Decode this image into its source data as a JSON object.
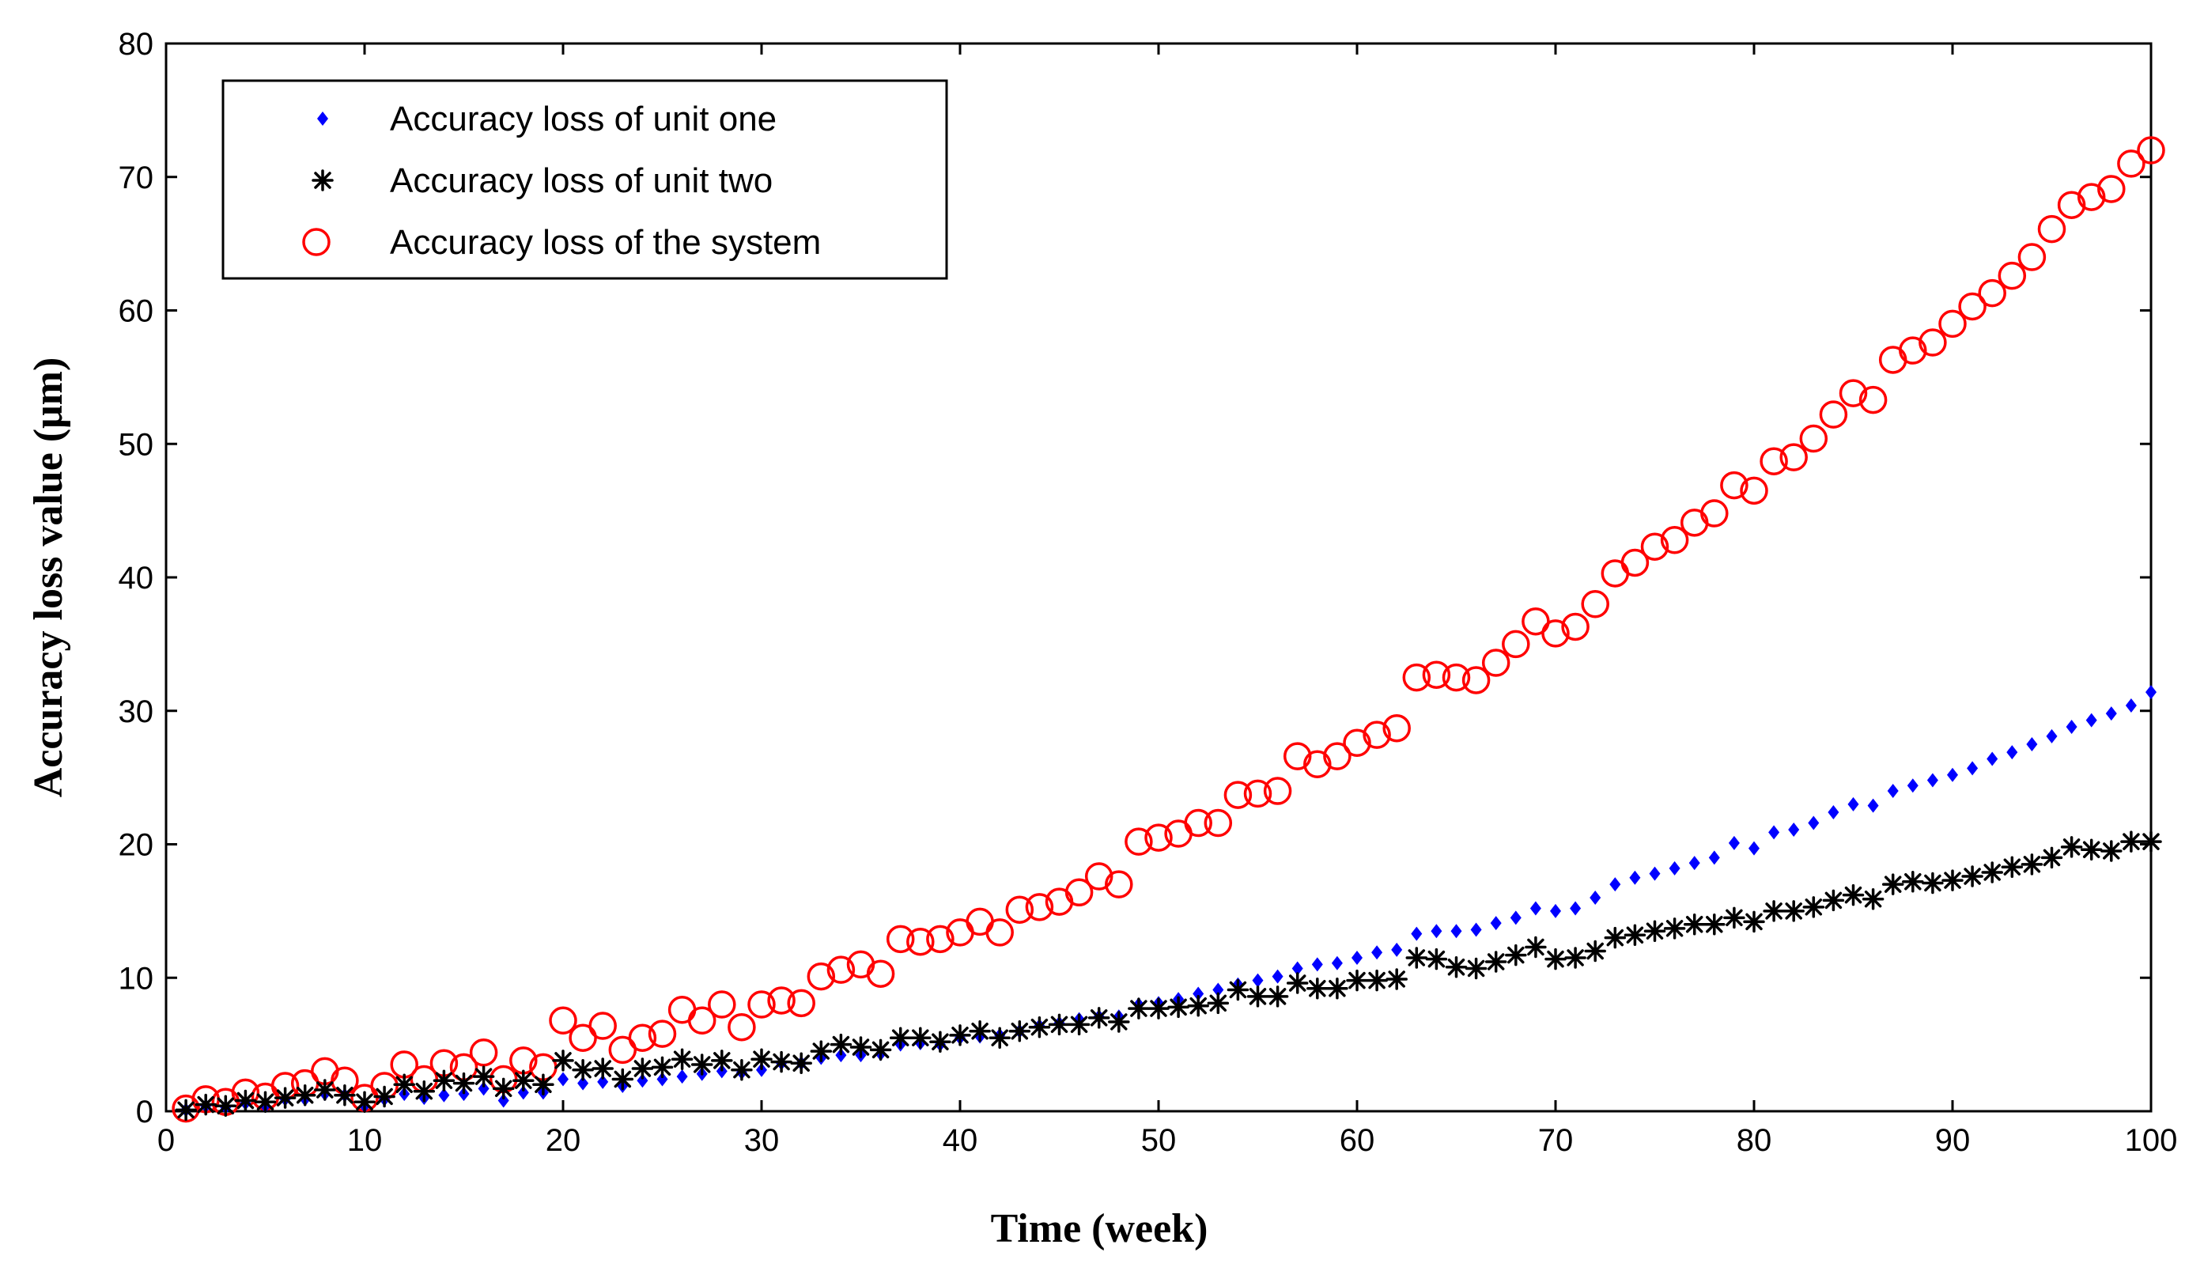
{
  "chart_data": {
    "type": "scatter",
    "title": "",
    "xlabel": "Time (week)",
    "ylabel": "Accuracy loss value (μm)",
    "xlim": [
      0,
      100
    ],
    "ylim": [
      0,
      80
    ],
    "xticks": [
      0,
      10,
      20,
      30,
      40,
      50,
      60,
      70,
      80,
      90,
      100
    ],
    "yticks": [
      0,
      10,
      20,
      30,
      40,
      50,
      60,
      70,
      80
    ],
    "grid": false,
    "legend_position": "top-left",
    "series": [
      {
        "name": "Accuracy loss of unit one",
        "marker": "diamond",
        "color": "#0000ff",
        "x": [
          1,
          2,
          3,
          4,
          5,
          6,
          7,
          8,
          9,
          10,
          11,
          12,
          13,
          14,
          15,
          16,
          17,
          18,
          19,
          20,
          21,
          22,
          23,
          24,
          25,
          26,
          27,
          28,
          29,
          30,
          31,
          32,
          33,
          34,
          35,
          36,
          37,
          38,
          39,
          40,
          41,
          42,
          43,
          44,
          45,
          46,
          47,
          48,
          49,
          50,
          51,
          52,
          53,
          54,
          55,
          56,
          57,
          58,
          59,
          60,
          61,
          62,
          63,
          64,
          65,
          66,
          67,
          68,
          69,
          70,
          71,
          72,
          73,
          74,
          75,
          76,
          77,
          78,
          79,
          80,
          81,
          82,
          83,
          84,
          85,
          86,
          87,
          88,
          89,
          90,
          91,
          92,
          93,
          94,
          95,
          96,
          97,
          98,
          99,
          100
        ],
        "y": [
          0.1,
          0.4,
          0.3,
          0.6,
          0.4,
          0.9,
          0.9,
          1.3,
          1.2,
          0.4,
          0.9,
          1.3,
          1.0,
          1.2,
          1.3,
          1.7,
          0.8,
          1.4,
          1.4,
          2.4,
          2.1,
          2.2,
          1.9,
          2.3,
          2.4,
          2.6,
          2.8,
          3.0,
          2.9,
          3.1,
          3.6,
          3.6,
          4.0,
          4.2,
          4.2,
          4.3,
          5.0,
          5.1,
          5.0,
          5.5,
          5.6,
          5.7,
          6.0,
          6.4,
          6.6,
          6.9,
          7.1,
          7.1,
          8.0,
          8.1,
          8.4,
          8.8,
          9.1,
          9.5,
          9.8,
          10.1,
          10.7,
          11.0,
          11.1,
          11.5,
          11.9,
          12.1,
          13.3,
          13.5,
          13.5,
          13.6,
          14.1,
          14.5,
          15.2,
          15.0,
          15.2,
          16.0,
          17.0,
          17.5,
          17.8,
          18.2,
          18.6,
          19.0,
          20.1,
          19.7,
          20.9,
          21.1,
          21.6,
          22.4,
          23.0,
          22.9,
          24.0,
          24.4,
          24.8,
          25.2,
          25.7,
          26.4,
          26.9,
          27.5,
          28.1,
          28.8,
          29.3,
          29.8,
          30.4,
          31.4
        ]
      },
      {
        "name": "Accuracy loss of unit two",
        "marker": "asterisk",
        "color": "#000000",
        "x": [
          1,
          2,
          3,
          4,
          5,
          6,
          7,
          8,
          9,
          10,
          11,
          12,
          13,
          14,
          15,
          16,
          17,
          18,
          19,
          20,
          21,
          22,
          23,
          24,
          25,
          26,
          27,
          28,
          29,
          30,
          31,
          32,
          33,
          34,
          35,
          36,
          37,
          38,
          39,
          40,
          41,
          42,
          43,
          44,
          45,
          46,
          47,
          48,
          49,
          50,
          51,
          52,
          53,
          54,
          55,
          56,
          57,
          58,
          59,
          60,
          61,
          62,
          63,
          64,
          65,
          66,
          67,
          68,
          69,
          70,
          71,
          72,
          73,
          74,
          75,
          76,
          77,
          78,
          79,
          80,
          81,
          82,
          83,
          84,
          85,
          86,
          87,
          88,
          89,
          90,
          91,
          92,
          93,
          94,
          95,
          96,
          97,
          98,
          99,
          100
        ],
        "y": [
          0.1,
          0.5,
          0.4,
          0.8,
          0.7,
          1.0,
          1.2,
          1.6,
          1.2,
          0.7,
          1.1,
          2.0,
          1.5,
          2.3,
          2.1,
          2.6,
          1.7,
          2.3,
          2.0,
          3.8,
          3.1,
          3.2,
          2.4,
          3.2,
          3.3,
          3.9,
          3.5,
          3.8,
          3.1,
          3.9,
          3.7,
          3.6,
          4.5,
          5.0,
          4.8,
          4.6,
          5.5,
          5.5,
          5.2,
          5.7,
          6.0,
          5.5,
          6.0,
          6.3,
          6.5,
          6.5,
          7.0,
          6.7,
          7.7,
          7.7,
          7.8,
          7.9,
          8.1,
          9.1,
          8.6,
          8.6,
          9.6,
          9.2,
          9.2,
          9.8,
          9.8,
          9.9,
          11.5,
          11.4,
          10.8,
          10.7,
          11.2,
          11.7,
          12.3,
          11.4,
          11.5,
          12.0,
          13.0,
          13.2,
          13.5,
          13.7,
          14.0,
          14.0,
          14.5,
          14.2,
          15.0,
          15.0,
          15.3,
          15.8,
          16.2,
          15.9,
          17.0,
          17.2,
          17.1,
          17.3,
          17.6,
          17.9,
          18.3,
          18.5,
          19.0,
          19.8,
          19.6,
          19.5,
          20.2,
          20.2
        ]
      },
      {
        "name": "Accuracy loss of the system",
        "marker": "circle",
        "color": "#ff0000",
        "x": [
          1,
          2,
          3,
          4,
          5,
          6,
          7,
          8,
          9,
          10,
          11,
          12,
          13,
          14,
          15,
          16,
          17,
          18,
          19,
          20,
          21,
          22,
          23,
          24,
          25,
          26,
          27,
          28,
          29,
          30,
          31,
          32,
          33,
          34,
          35,
          36,
          37,
          38,
          39,
          40,
          41,
          42,
          43,
          44,
          45,
          46,
          47,
          48,
          49,
          50,
          51,
          52,
          53,
          54,
          55,
          56,
          57,
          58,
          59,
          60,
          61,
          62,
          63,
          64,
          65,
          66,
          67,
          68,
          69,
          70,
          71,
          72,
          73,
          74,
          75,
          76,
          77,
          78,
          79,
          80,
          81,
          82,
          83,
          84,
          85,
          86,
          87,
          88,
          89,
          90,
          91,
          92,
          93,
          94,
          95,
          96,
          97,
          98,
          99,
          100
        ],
        "y": [
          0.2,
          0.9,
          0.7,
          1.4,
          1.1,
          1.9,
          2.1,
          3.0,
          2.3,
          1.0,
          1.9,
          3.5,
          2.4,
          3.6,
          3.3,
          4.4,
          2.4,
          3.8,
          3.3,
          6.8,
          5.5,
          6.4,
          4.6,
          5.5,
          5.8,
          7.6,
          6.8,
          8.0,
          6.3,
          8.0,
          8.3,
          8.1,
          10.1,
          10.6,
          11.0,
          10.3,
          12.9,
          12.7,
          12.9,
          13.4,
          14.2,
          13.4,
          15.1,
          15.3,
          15.7,
          16.4,
          17.6,
          17.0,
          20.2,
          20.5,
          20.8,
          21.6,
          21.6,
          23.7,
          23.8,
          24.0,
          26.6,
          26.0,
          26.6,
          27.6,
          28.2,
          28.7,
          32.5,
          32.7,
          32.5,
          32.3,
          33.6,
          35.0,
          36.7,
          35.8,
          36.3,
          38.0,
          40.3,
          41.1,
          42.3,
          42.8,
          44.1,
          44.8,
          46.9,
          46.5,
          48.7,
          49.0,
          50.4,
          52.2,
          53.8,
          53.3,
          56.3,
          57.0,
          57.6,
          59.0,
          60.3,
          61.3,
          62.6,
          64.0,
          66.1,
          67.9,
          68.5,
          69.1,
          71.0,
          72.0
        ]
      }
    ]
  }
}
